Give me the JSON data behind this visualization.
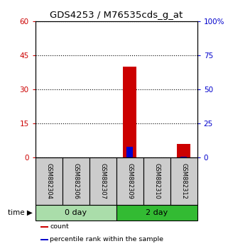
{
  "title": "GDS4253 / M76535cds_g_at",
  "samples": [
    "GSM882304",
    "GSM882306",
    "GSM882307",
    "GSM882309",
    "GSM882310",
    "GSM882312"
  ],
  "count_values": [
    0,
    0,
    0,
    40,
    0,
    6
  ],
  "percentile_values": [
    0,
    0,
    0,
    8,
    0,
    1
  ],
  "ylim_left": [
    0,
    60
  ],
  "ylim_right": [
    0,
    100
  ],
  "yticks_left": [
    0,
    15,
    30,
    45,
    60
  ],
  "yticks_right": [
    0,
    25,
    50,
    75,
    100
  ],
  "ytick_labels_left": [
    "0",
    "15",
    "30",
    "45",
    "60"
  ],
  "ytick_labels_right": [
    "0",
    "25",
    "50",
    "75",
    "100%"
  ],
  "left_axis_color": "#cc0000",
  "right_axis_color": "#0000cc",
  "bar_color_count": "#cc0000",
  "bar_color_percentile": "#0000cc",
  "groups": [
    {
      "label": "0 day",
      "indices": [
        0,
        1,
        2
      ],
      "color": "#aaddaa"
    },
    {
      "label": "2 day",
      "indices": [
        3,
        4,
        5
      ],
      "color": "#33bb33"
    }
  ],
  "time_label": "time",
  "legend": [
    "count",
    "percentile rank within the sample"
  ],
  "background_color": "#ffffff",
  "plot_bg_color": "#ffffff",
  "sample_box_color": "#cccccc",
  "bar_width": 0.5
}
